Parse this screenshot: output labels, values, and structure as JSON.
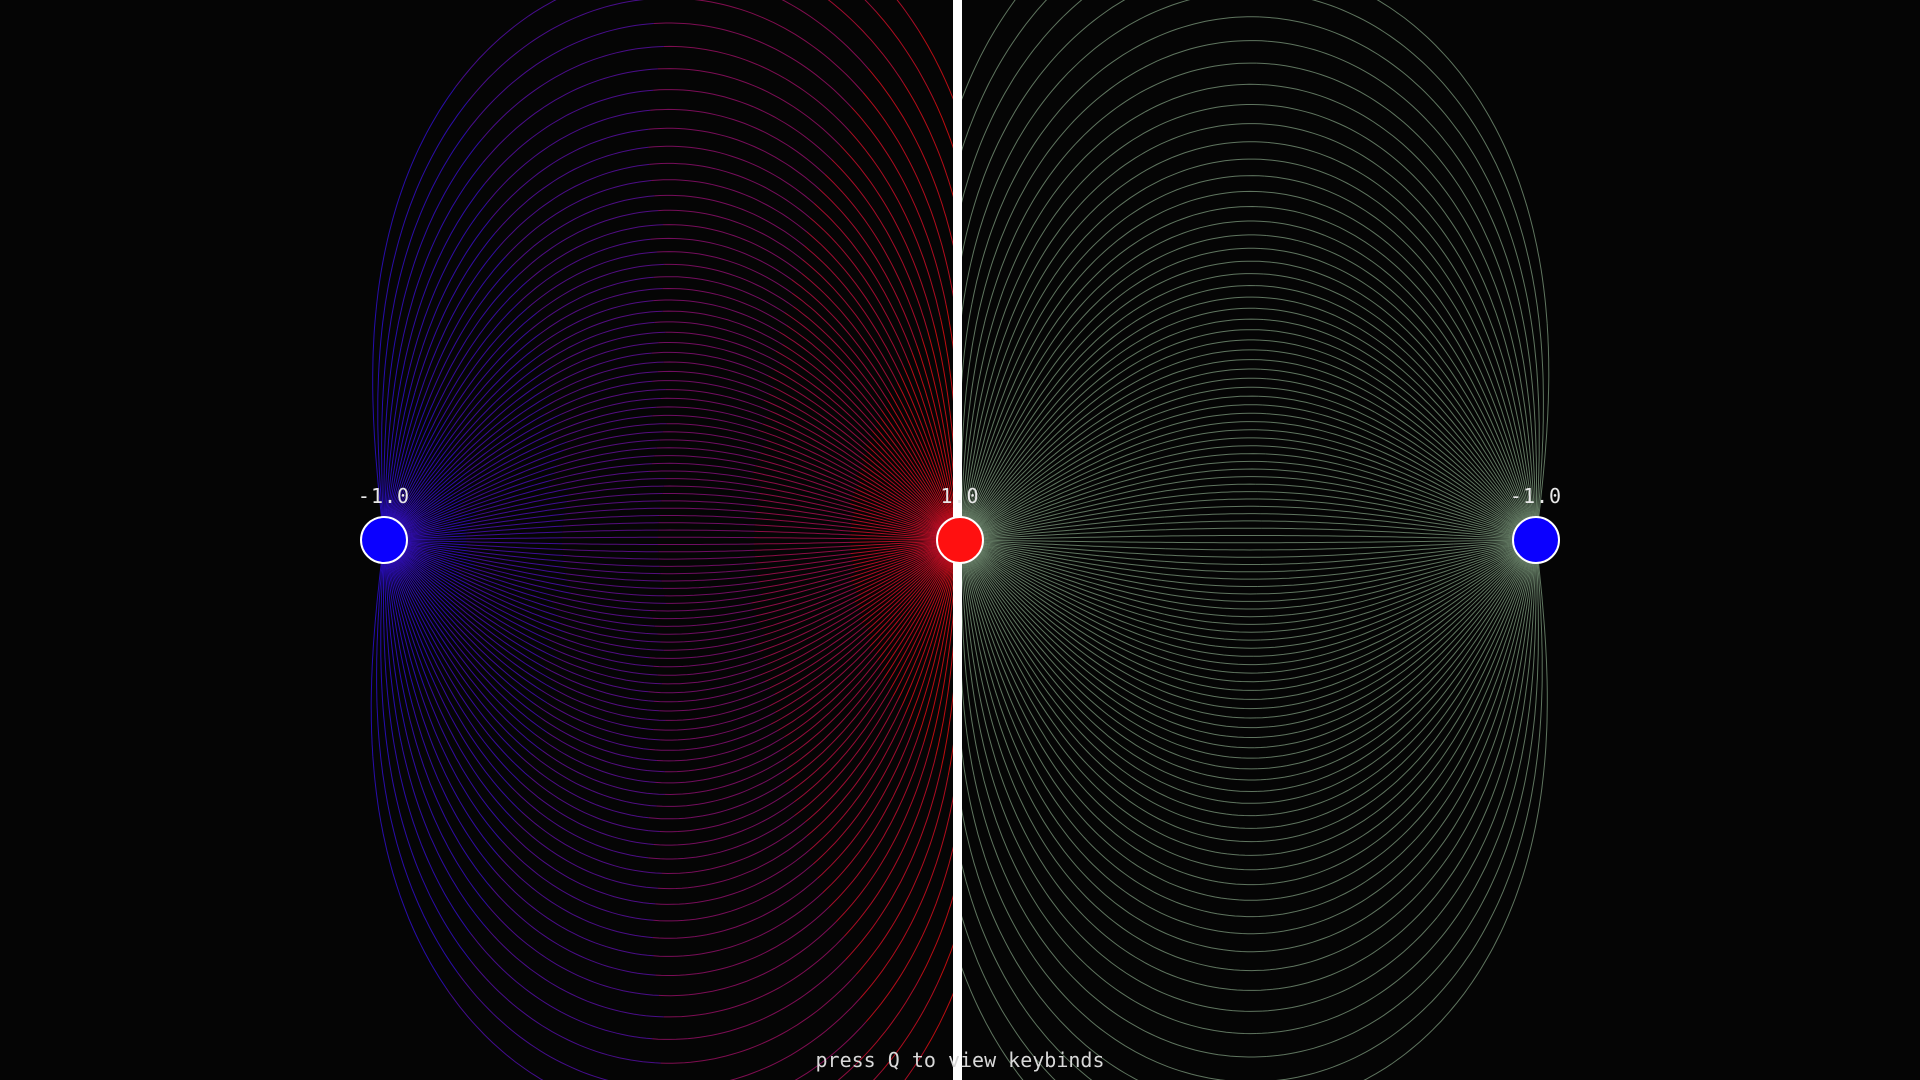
{
  "colors": {
    "background": "#050505",
    "negative": "#1a10ff",
    "positive": "#ff1010",
    "right_lines": "#7e9b7e",
    "divider": "#ffffff",
    "charge_outline": "#ffffff"
  },
  "charges": [
    {
      "label": "-1.0",
      "value": -1.0
    },
    {
      "label": "1.0",
      "value": 1.0
    },
    {
      "label": "-1.0",
      "value": -1.0
    }
  ],
  "hint": {
    "text": "press Q to view keybinds"
  }
}
